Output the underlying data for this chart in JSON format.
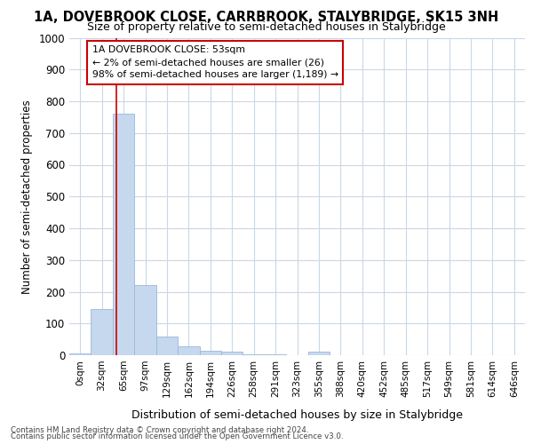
{
  "title_line1": "1A, DOVEBROOK CLOSE, CARRBROOK, STALYBRIDGE, SK15 3NH",
  "title_line2": "Size of property relative to semi-detached houses in Stalybridge",
  "xlabel": "Distribution of semi-detached houses by size in Stalybridge",
  "ylabel": "Number of semi-detached properties",
  "footer_line1": "Contains HM Land Registry data © Crown copyright and database right 2024.",
  "footer_line2": "Contains public sector information licensed under the Open Government Licence v3.0.",
  "bar_labels": [
    "0sqm",
    "32sqm",
    "65sqm",
    "97sqm",
    "129sqm",
    "162sqm",
    "194sqm",
    "226sqm",
    "258sqm",
    "291sqm",
    "323sqm",
    "355sqm",
    "388sqm",
    "420sqm",
    "452sqm",
    "485sqm",
    "517sqm",
    "549sqm",
    "581sqm",
    "614sqm",
    "646sqm"
  ],
  "bar_values": [
    5,
    145,
    760,
    220,
    58,
    27,
    15,
    10,
    4,
    2,
    0,
    10,
    0,
    0,
    0,
    0,
    0,
    0,
    0,
    0,
    0
  ],
  "bar_color": "#c5d8ee",
  "bar_edge_color": "#9ab8d8",
  "ylim": [
    0,
    1000
  ],
  "yticks": [
    0,
    100,
    200,
    300,
    400,
    500,
    600,
    700,
    800,
    900,
    1000
  ],
  "property_line_x": 1.65,
  "annotation_line1": "1A DOVEBROOK CLOSE: 53sqm",
  "annotation_line2": "← 2% of semi-detached houses are smaller (26)",
  "annotation_line3": "98% of semi-detached houses are larger (1,189) →",
  "annotation_box_color": "#ffffff",
  "annotation_box_edge_color": "#cc0000",
  "vline_color": "#cc0000",
  "background_color": "#ffffff",
  "grid_color": "#c8d8e8",
  "figsize": [
    6.0,
    5.0
  ],
  "dpi": 100
}
